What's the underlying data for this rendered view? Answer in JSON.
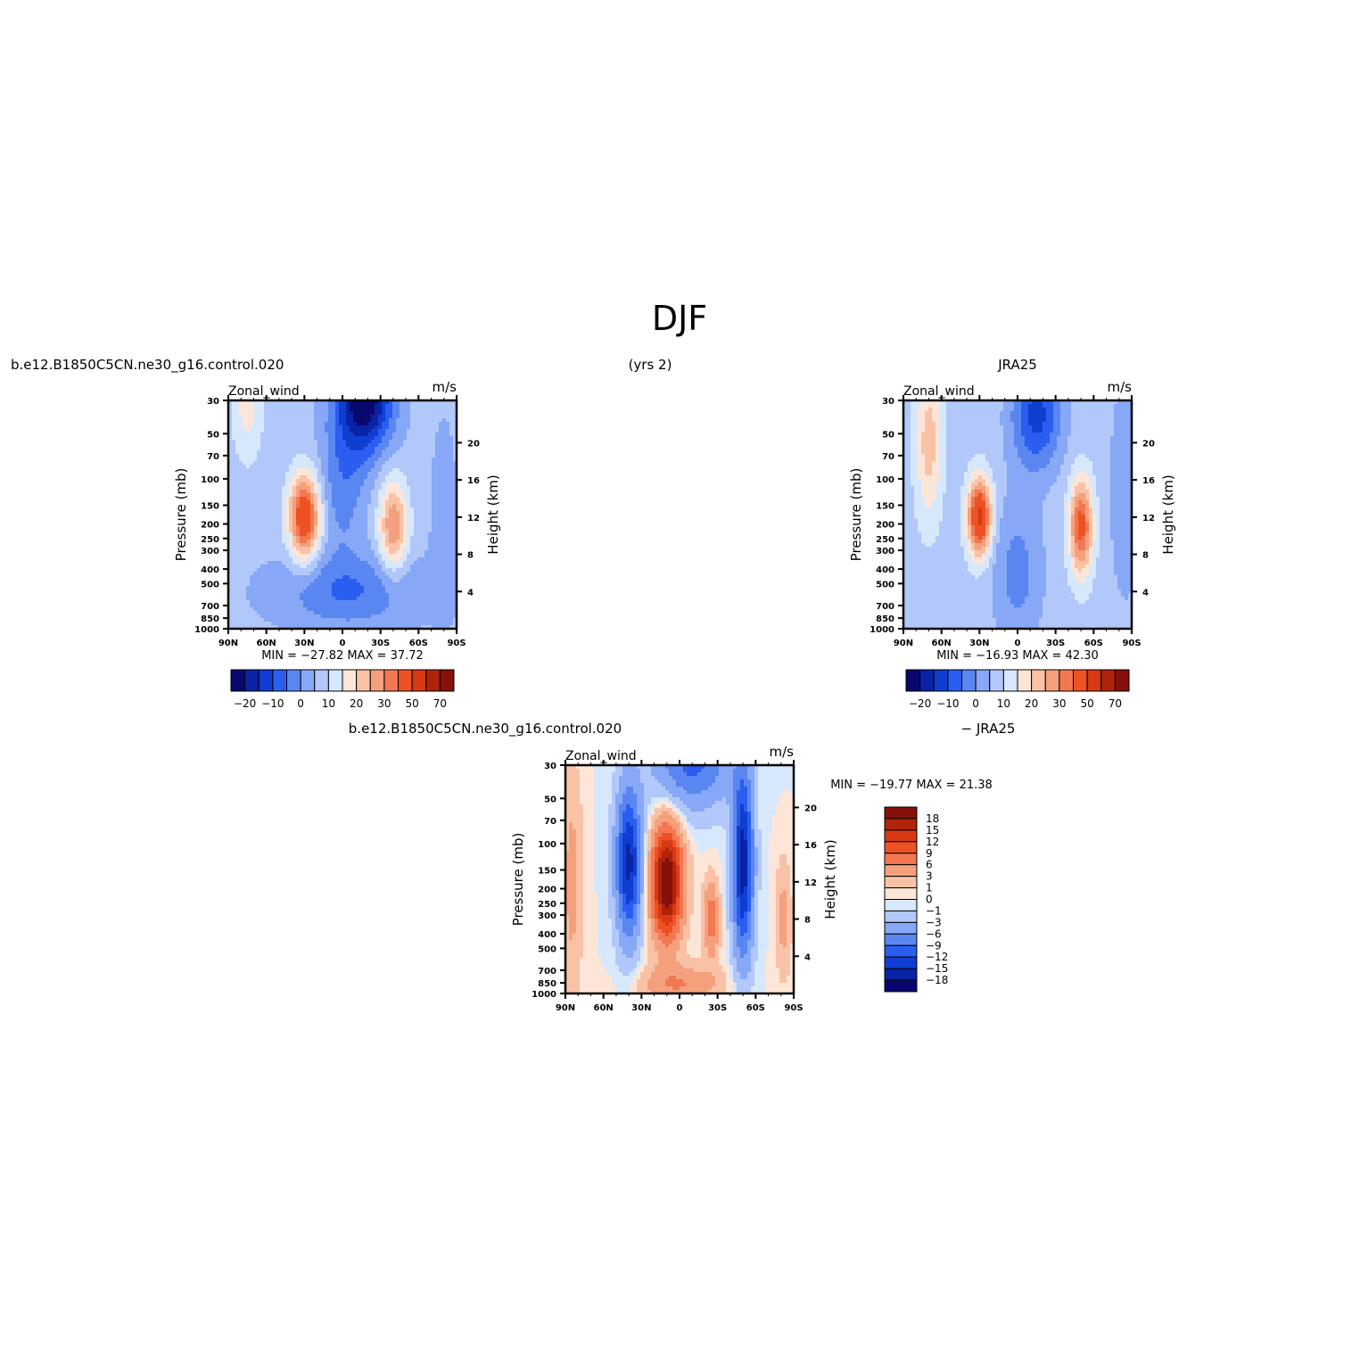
{
  "page": {
    "title": "DJF",
    "case_name": "b.e12.B1850C5CN.ne30_g16.control.020",
    "years": "(yrs 2)",
    "obs_name": "JRA25",
    "diff_case": "b.e12.B1850C5CN.ne30_g16.control.020",
    "diff_obs": "− JRA25"
  },
  "colors": {
    "abs_levels": [
      "#08086e",
      "#0a22a6",
      "#0f3ed0",
      "#2a5ef0",
      "#5a86f2",
      "#86a8f6",
      "#b2c8fa",
      "#d8e8fc",
      "#fde6d8",
      "#f9c2a6",
      "#f5a07c",
      "#f27852",
      "#ee5224",
      "#d83a14",
      "#b0240c",
      "#86100a"
    ],
    "diff_levels": [
      "#86100a",
      "#b0240c",
      "#d83a14",
      "#ee5224",
      "#f27852",
      "#f5a07c",
      "#f9c2a6",
      "#fde6d8",
      "#d8e8fc",
      "#b2c8fa",
      "#86a8f6",
      "#5a86f2",
      "#2a5ef0",
      "#0f3ed0",
      "#0a22a6",
      "#08086e"
    ]
  },
  "chart_data": [
    {
      "type": "heatmap",
      "title": "b.e12.B1850C5CN.ne30_g16.control.020",
      "left_string": "Zonal_wind",
      "right_string": "m/s",
      "ylabel": "Pressure (mb)",
      "y2label": "Height (km)",
      "x_ticks": [
        "90N",
        "60N",
        "30N",
        "0",
        "30S",
        "60S",
        "90S"
      ],
      "y_ticks": [
        30,
        50,
        70,
        100,
        150,
        200,
        250,
        300,
        400,
        500,
        700,
        850,
        1000
      ],
      "y2_ticks": [
        4,
        8,
        12,
        16,
        20
      ],
      "ylim": [
        1000,
        30
      ],
      "min_max": "MIN = −27.82   MAX =   37.72",
      "min": -27.82,
      "max": 37.72,
      "colorbar_labels": [
        "−20",
        "−10",
        "0",
        "10",
        "20",
        "30",
        "50",
        "70"
      ],
      "features": [
        {
          "lat": 30,
          "p": 200,
          "value": 35
        },
        {
          "lat": -40,
          "p": 250,
          "value": 22
        },
        {
          "lat": -20,
          "p": 30,
          "value": -27
        }
      ]
    },
    {
      "type": "heatmap",
      "title": "JRA25",
      "left_string": "Zonal_wind",
      "right_string": "m/s",
      "ylabel": "Pressure (mb)",
      "y2label": "Height (km)",
      "x_ticks": [
        "90N",
        "60N",
        "30N",
        "0",
        "30S",
        "60S",
        "90S"
      ],
      "y_ticks": [
        30,
        50,
        70,
        100,
        150,
        200,
        250,
        300,
        400,
        500,
        700,
        850,
        1000
      ],
      "y2_ticks": [
        4,
        8,
        12,
        16,
        20
      ],
      "ylim": [
        1000,
        30
      ],
      "min_max": "MIN = −16.93   MAX =   42.30",
      "min": -16.93,
      "max": 42.3,
      "colorbar_labels": [
        "−20",
        "−10",
        "0",
        "10",
        "20",
        "30",
        "50",
        "70"
      ],
      "features": [
        {
          "lat": 30,
          "p": 200,
          "value": 42
        },
        {
          "lat": -50,
          "p": 250,
          "value": 30
        },
        {
          "lat": -20,
          "p": 50,
          "value": -16
        }
      ]
    },
    {
      "type": "heatmap",
      "title": "b.e12.B1850C5CN.ne30_g16.control.020 − JRA25",
      "left_string": "Zonal_wind",
      "right_string": "m/s",
      "ylabel": "Pressure (mb)",
      "y2label": "Height (km)",
      "x_ticks": [
        "90N",
        "60N",
        "30N",
        "0",
        "30S",
        "60S",
        "90S"
      ],
      "y_ticks": [
        30,
        50,
        70,
        100,
        150,
        200,
        250,
        300,
        400,
        500,
        700,
        850,
        1000
      ],
      "y2_ticks": [
        4,
        8,
        12,
        16,
        20
      ],
      "ylim": [
        1000,
        30
      ],
      "min_max": "MIN = −19.77   MAX =   21.38",
      "min": -19.77,
      "max": 21.38,
      "colorbar_labels": [
        "18",
        "15",
        "12",
        "9",
        "6",
        "3",
        "1",
        "0",
        "−1",
        "−3",
        "−6",
        "−9",
        "−12",
        "−15",
        "−18"
      ],
      "features": [
        {
          "lat": 10,
          "p": 200,
          "value": 21
        },
        {
          "lat": 40,
          "p": 150,
          "value": -15
        },
        {
          "lat": -50,
          "p": 150,
          "value": -16
        }
      ]
    }
  ]
}
